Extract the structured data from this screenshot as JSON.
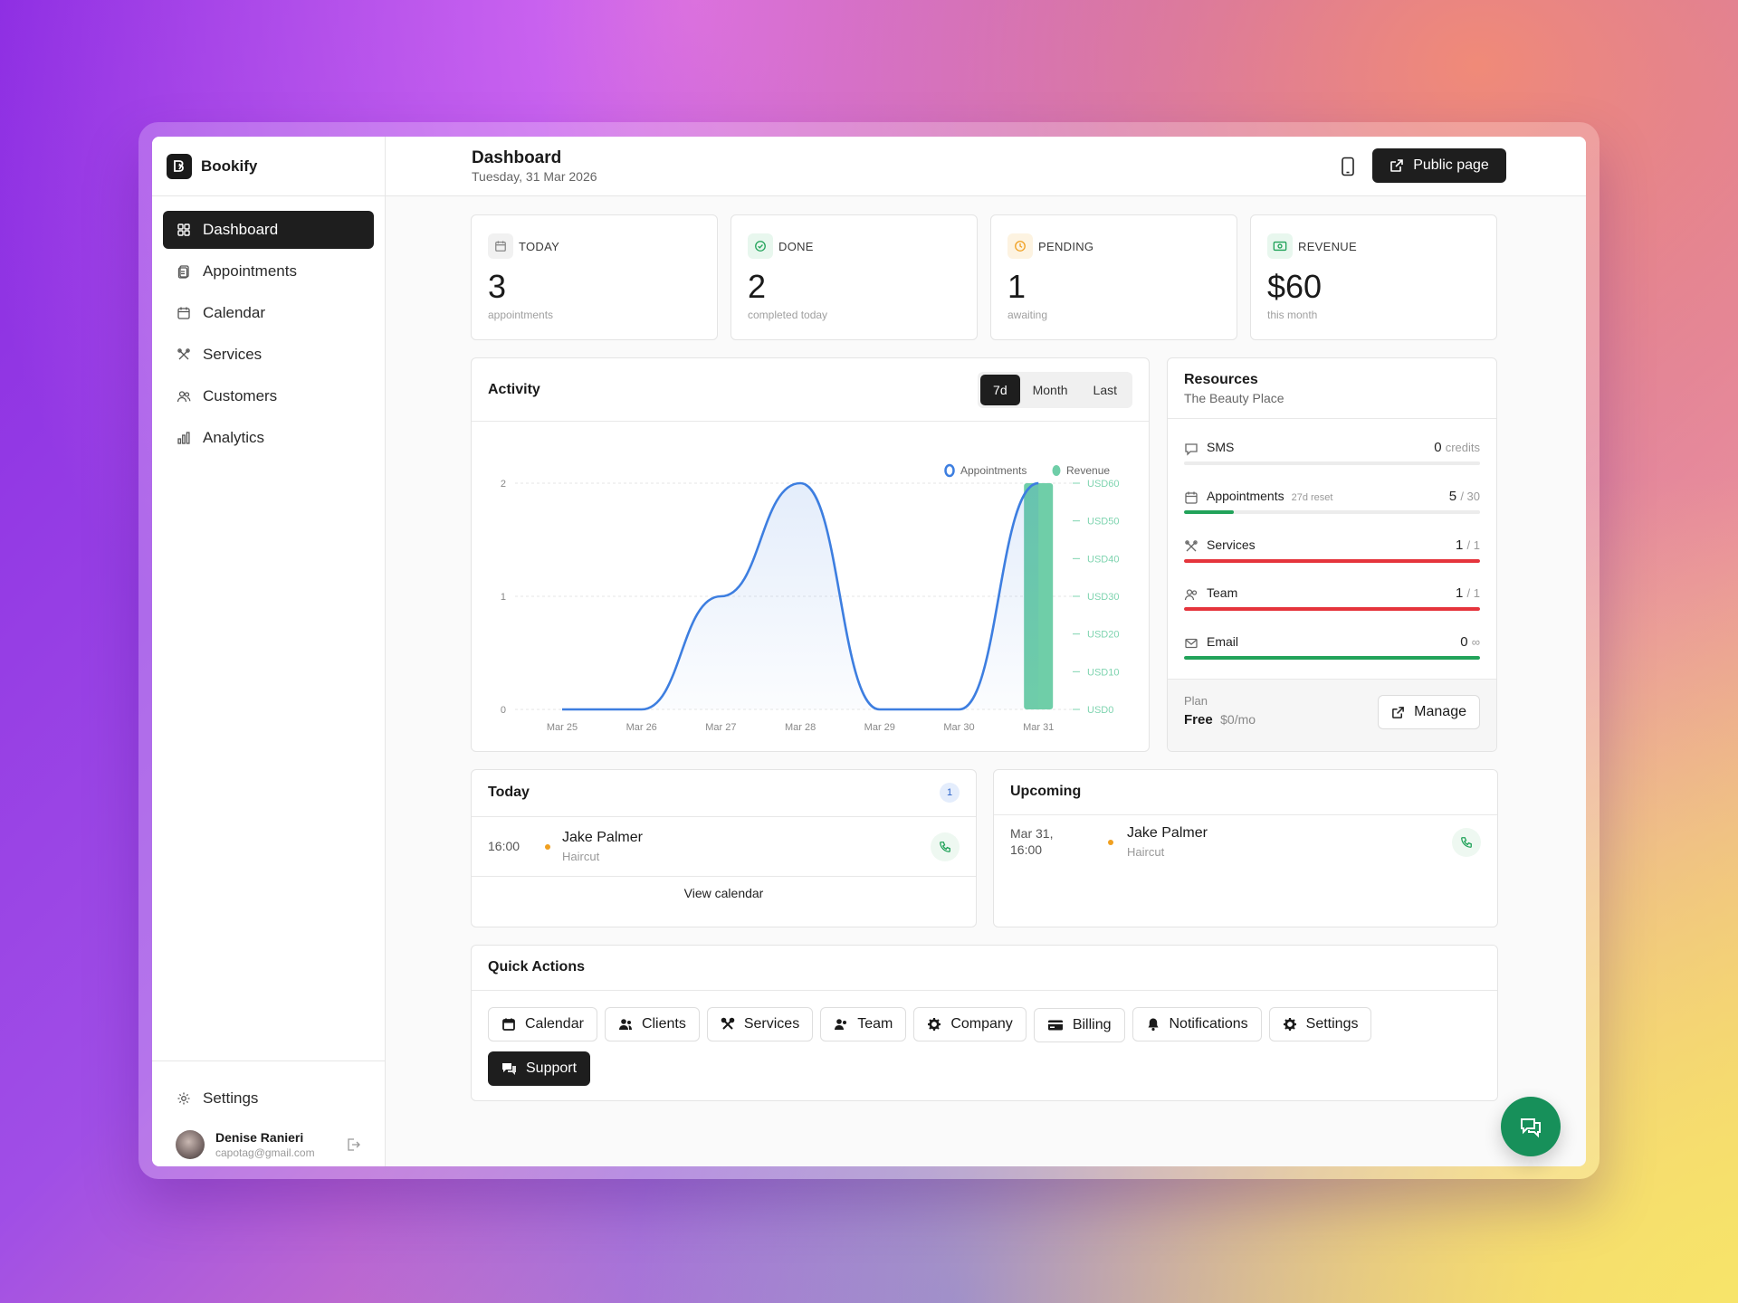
{
  "app": {
    "name": "Bookify"
  },
  "sidebar": {
    "items": [
      {
        "label": "Dashboard",
        "icon": "grid-icon",
        "active": true
      },
      {
        "label": "Appointments",
        "icon": "clipboard-icon"
      },
      {
        "label": "Calendar",
        "icon": "calendar-icon"
      },
      {
        "label": "Services",
        "icon": "tools-icon"
      },
      {
        "label": "Customers",
        "icon": "users-icon"
      },
      {
        "label": "Analytics",
        "icon": "bar-chart-icon"
      }
    ],
    "settings_label": "Settings",
    "user": {
      "name": "Denise Ranieri",
      "email": "capotag@gmail.com"
    }
  },
  "header": {
    "title": "Dashboard",
    "date": "Tuesday, 31 Mar 2026",
    "public_page_label": "Public page"
  },
  "stats": [
    {
      "label": "TODAY",
      "value": "3",
      "sub": "appointments",
      "icon": "calendar-icon",
      "color": "#9a9a9a",
      "bg": "#f1f1f1"
    },
    {
      "label": "DONE",
      "value": "2",
      "sub": "completed today",
      "icon": "check-circle-icon",
      "color": "#22a35a",
      "bg": "#e8f7ee"
    },
    {
      "label": "PENDING",
      "value": "1",
      "sub": "awaiting",
      "icon": "clock-icon",
      "color": "#f0a020",
      "bg": "#fdf3e1"
    },
    {
      "label": "REVENUE",
      "value": "$60",
      "sub": "this month",
      "icon": "money-icon",
      "color": "#22a35a",
      "bg": "#e8f7ee"
    }
  ],
  "activity": {
    "title": "Activity",
    "ranges": [
      "7d",
      "Month",
      "Last"
    ],
    "selected_range": "7d"
  },
  "chart_data": {
    "type": "line",
    "title": "",
    "x": [
      "Mar 25",
      "Mar 26",
      "Mar 27",
      "Mar 28",
      "Mar 29",
      "Mar 30",
      "Mar 31"
    ],
    "series": [
      {
        "name": "Appointments",
        "type": "area",
        "axis": "left",
        "values": [
          0,
          0,
          1,
          2,
          0,
          0,
          2
        ],
        "color": "#3d7ee0"
      },
      {
        "name": "Revenue",
        "type": "bar",
        "axis": "right",
        "values": [
          0,
          0,
          0,
          0,
          0,
          0,
          60
        ],
        "color": "#6fcea8"
      }
    ],
    "y_left": {
      "ticks": [
        "0",
        "1",
        "2"
      ],
      "ylim": [
        0,
        2
      ]
    },
    "y_right": {
      "ticks": [
        "USD0",
        "USD10",
        "USD20",
        "USD30",
        "USD40",
        "USD50",
        "USD60"
      ],
      "ylim": [
        0,
        60
      ]
    },
    "legend": "top-right",
    "grid": true
  },
  "resources": {
    "title": "Resources",
    "subtitle": "The Beauty Place",
    "rows": [
      {
        "name": "SMS",
        "icon": "message-icon",
        "value": "0",
        "unit": "credits",
        "fill": 0,
        "color": "#22a35a"
      },
      {
        "name": "Appointments",
        "note": "27d reset",
        "icon": "calendar-icon",
        "value": "5",
        "unit": "/ 30",
        "fill": 0.1667,
        "color": "#22a35a"
      },
      {
        "name": "Services",
        "icon": "tools-icon",
        "value": "1",
        "unit": "/ 1",
        "fill": 1,
        "color": "#e5343c"
      },
      {
        "name": "Team",
        "icon": "users-icon",
        "value": "1",
        "unit": "/ 1",
        "fill": 1,
        "color": "#e5343c"
      },
      {
        "name": "Email",
        "icon": "mail-icon",
        "value": "0",
        "unit": "∞",
        "fill": 1,
        "color": "#22a35a"
      }
    ],
    "plan_label": "Plan",
    "plan_name": "Free",
    "plan_price": "$0/mo",
    "manage_label": "Manage"
  },
  "today": {
    "title": "Today",
    "count": "1",
    "items": [
      {
        "time": "16:00",
        "name": "Jake Palmer",
        "service": "Haircut",
        "status_color": "#f0a020"
      }
    ],
    "view_calendar_label": "View calendar"
  },
  "upcoming": {
    "title": "Upcoming",
    "items": [
      {
        "time_line1": "Mar 31,",
        "time_line2": "16:00",
        "name": "Jake Palmer",
        "service": "Haircut",
        "status_color": "#f0a020"
      }
    ]
  },
  "quick_actions": {
    "title": "Quick Actions",
    "buttons": [
      {
        "label": "Calendar",
        "icon": "calendar-icon"
      },
      {
        "label": "Clients",
        "icon": "users-icon"
      },
      {
        "label": "Services",
        "icon": "tools-icon"
      },
      {
        "label": "Team",
        "icon": "team-icon"
      },
      {
        "label": "Company",
        "icon": "gear-icon"
      },
      {
        "label": "Billing",
        "icon": "credit-card-icon"
      },
      {
        "label": "Notifications",
        "icon": "bell-icon"
      },
      {
        "label": "Settings",
        "icon": "gear-icon"
      },
      {
        "label": "Support",
        "icon": "chat-icon",
        "primary": true
      }
    ]
  }
}
